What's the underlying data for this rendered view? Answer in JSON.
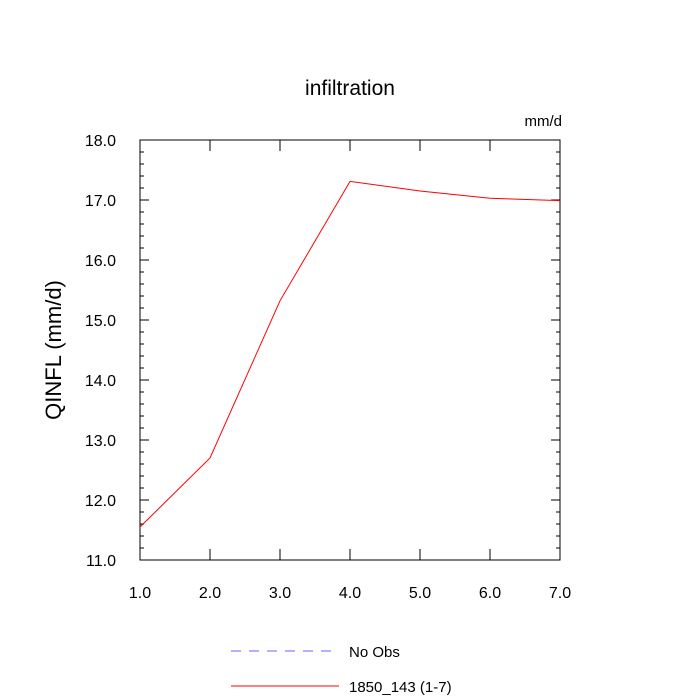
{
  "chart_data": {
    "type": "line",
    "title": "infiltration",
    "units_label": "mm/d",
    "xlabel": "",
    "ylabel": "QINFL  (mm/d)",
    "xlim": [
      1.0,
      7.0
    ],
    "ylim": [
      11.0,
      18.0
    ],
    "x_ticks": [
      "1.0",
      "2.0",
      "3.0",
      "4.0",
      "5.0",
      "6.0",
      "7.0"
    ],
    "y_ticks": [
      "11.0",
      "12.0",
      "13.0",
      "14.0",
      "15.0",
      "16.0",
      "17.0",
      "18.0"
    ],
    "grid": false,
    "legend_position": "bottom",
    "series": [
      {
        "name": "No Obs",
        "color": "#6666ff",
        "dash": "dashed",
        "x": [],
        "y": []
      },
      {
        "name": "1850_143 (1-7)",
        "color": "#ff0000",
        "dash": "solid",
        "x": [
          1,
          2,
          3,
          4,
          5,
          6,
          7
        ],
        "y": [
          11.55,
          12.7,
          15.32,
          17.31,
          17.15,
          17.03,
          16.99
        ]
      }
    ]
  }
}
